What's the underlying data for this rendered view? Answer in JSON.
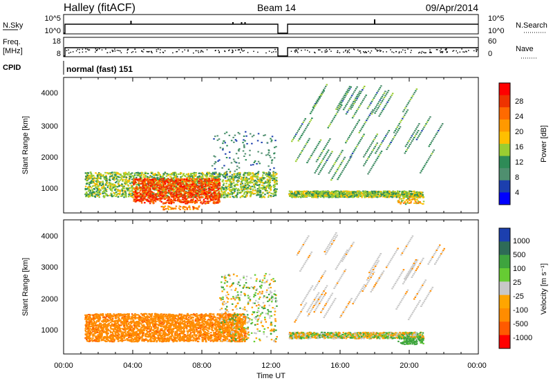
{
  "header": {
    "station": "Halley (fitACF)",
    "beam": "Beam 14",
    "date": "09/Apr/2014"
  },
  "nsky": {
    "label": "N.Sky",
    "ticks": [
      "10^5",
      "10^0"
    ],
    "right_label": "N.Search",
    "right_ticks": [
      "10^5",
      "10^0"
    ]
  },
  "freq": {
    "label_line1": "Freq.",
    "label_line2": "[MHz]",
    "ticks": [
      "18",
      "8"
    ],
    "right_label": "Nave",
    "right_ticks": [
      "60",
      "0"
    ]
  },
  "cpid": {
    "label": "CPID",
    "value": "normal (fast) 151"
  },
  "time_axis": {
    "label": "Time UT",
    "ticks": [
      "00:00",
      "04:00",
      "08:00",
      "12:00",
      "16:00",
      "20:00",
      "00:00"
    ]
  },
  "power_panel": {
    "ylabel": "Slant Range [km]",
    "yticks": [
      "4000",
      "3000",
      "2000",
      "1000"
    ]
  },
  "velocity_panel": {
    "ylabel": "Slant Range [km]",
    "yticks": [
      "4000",
      "3000",
      "2000",
      "1000"
    ]
  },
  "power_scale": {
    "title": "Power [dB]",
    "labels": [
      "28",
      "24",
      "20",
      "16",
      "12",
      "8",
      "4"
    ],
    "colors": [
      "#ff0000",
      "#ee3300",
      "#ff6a00",
      "#ff9900",
      "#ffbf00",
      "#9acd32",
      "#2e8b57",
      "#4f8f6f",
      "#1c3fae",
      "#0000ff"
    ]
  },
  "velocity_scale": {
    "title": "Velocity [m s⁻¹]",
    "labels": [
      "1000",
      "500",
      "100",
      "25",
      "-25",
      "-100",
      "-500",
      "-1000"
    ],
    "colors": [
      "#1c3fae",
      "#2e6b57",
      "#3ea43e",
      "#66cc33",
      "#c8c8c8",
      "#ffa500",
      "#ff8c00",
      "#ff5a00",
      "#ff0000"
    ]
  },
  "chart_data": [
    {
      "type": "line",
      "title": "N.Sky",
      "x": [
        0,
        24
      ],
      "ylim_exp": [
        0,
        5
      ],
      "data_gap_hours": [
        12.5,
        12.9
      ]
    },
    {
      "type": "scatter",
      "title": "Freq.",
      "x_range_hours": [
        0,
        24
      ],
      "ylim": [
        8,
        18
      ],
      "data_gap_hours": [
        12.5,
        12.9
      ]
    },
    {
      "type": "heatmap",
      "title": "Power",
      "x_range_hours": [
        0,
        24
      ],
      "ylim_km": [
        180,
        4500
      ],
      "colorbar": {
        "min_db": 0,
        "max_db": 32
      },
      "features": [
        {
          "time_start": 1.2,
          "time_end": 12.3,
          "range_start_km": 700,
          "range_end_km": 1500,
          "power_db": 14
        },
        {
          "time_start": 4.0,
          "time_end": 9.0,
          "range_start_km": 500,
          "range_end_km": 1300,
          "power_db": 26
        },
        {
          "time_start": 13.0,
          "time_end": 20.8,
          "range_start_km": 700,
          "range_end_km": 900,
          "power_db": 14
        },
        {
          "time_start": 13.0,
          "time_end": 22.0,
          "range_start_km": 1200,
          "range_end_km": 4400,
          "power_db": 8
        }
      ]
    },
    {
      "type": "heatmap",
      "title": "Velocity",
      "x_range_hours": [
        0,
        24
      ],
      "ylim_km": [
        180,
        4500
      ],
      "colorbar": {
        "min": -1000,
        "max": 1000
      },
      "features": [
        {
          "time_start": 1.2,
          "time_end": 10.5,
          "range_start_km": 600,
          "range_end_km": 1500,
          "velocity": -300
        },
        {
          "time_start": 9.0,
          "time_end": 12.3,
          "range_start_km": 600,
          "range_end_km": 2800,
          "velocity": 0
        },
        {
          "time_start": 13.0,
          "time_end": 21.0,
          "range_start_km": 700,
          "range_end_km": 4400,
          "velocity": 0
        },
        {
          "time_start": 19.3,
          "time_end": 20.8,
          "range_start_km": 500,
          "range_end_km": 800,
          "velocity": 150
        }
      ]
    }
  ]
}
